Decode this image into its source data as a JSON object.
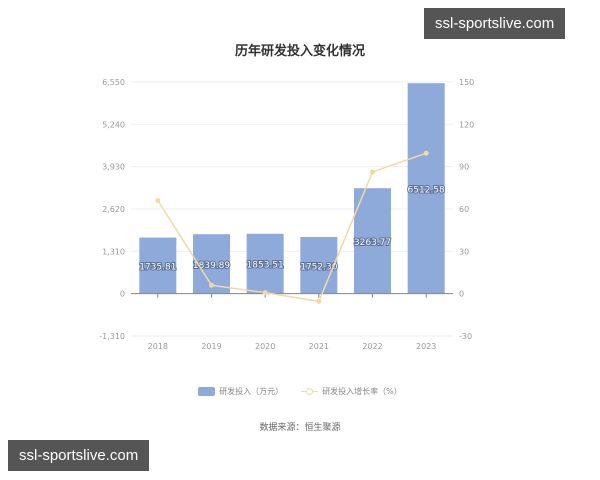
{
  "title": "历年研发投入变化情况",
  "source": "数据来源：恒生聚源",
  "watermarks": [
    "ssl-sportslive.com",
    "ssl-sportslive.com"
  ],
  "legend": {
    "bar": "研发投入（万元）",
    "line": "研发投入增长率（%）"
  },
  "colors": {
    "bar": "#8eaadb",
    "line": "#f1d9a6",
    "grid": "#eeeeee",
    "axis": "#999999"
  },
  "chart_data": {
    "type": "bar",
    "title": "历年研发投入变化情况",
    "categories": [
      "2018",
      "2019",
      "2020",
      "2021",
      "2022",
      "2023"
    ],
    "series": [
      {
        "name": "研发投入（万元）",
        "type": "bar",
        "axis": "left",
        "values": [
          1735.81,
          1839.89,
          1853.51,
          1752.3,
          3263.77,
          6512.58
        ],
        "labels": [
          "1735.81",
          "1839.89",
          "1853.51",
          "1752.30",
          "3263.77",
          "6512.58"
        ]
      },
      {
        "name": "研发投入增长率（%）",
        "type": "line",
        "axis": "right",
        "values": [
          66,
          6.0,
          0.74,
          -5.46,
          86.25,
          99.55
        ]
      }
    ],
    "y_left": {
      "ticks": [
        "6,550",
        "5,240",
        "3,930",
        "2,620",
        "1,310",
        "0",
        "-1,310"
      ],
      "range": [
        -1310,
        6550
      ]
    },
    "y_right": {
      "ticks": [
        "150",
        "120",
        "90",
        "60",
        "30",
        "0",
        "-30"
      ],
      "range": [
        -30,
        150
      ]
    },
    "xlabel": "",
    "ylabel": "",
    "grid": true,
    "legend_position": "bottom"
  }
}
